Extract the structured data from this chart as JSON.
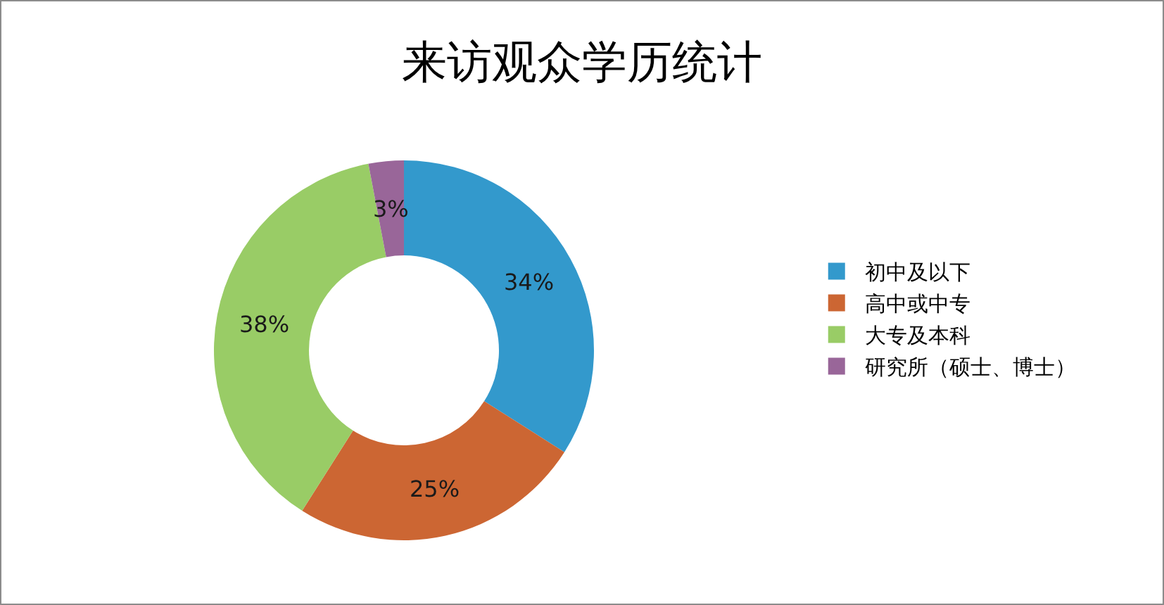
{
  "chart_data": {
    "type": "donut",
    "title": "来访观众学历统计",
    "categories": [
      "初中及以下",
      "高中或中专",
      "大专及本科",
      "研究所（硕士、博士）"
    ],
    "values": [
      34,
      25,
      38,
      3
    ],
    "value_labels": [
      "34%",
      "25%",
      "38%",
      "3%"
    ],
    "colors": [
      "#3399cc",
      "#cc6633",
      "#99cc66",
      "#996699"
    ],
    "legend": "right"
  }
}
